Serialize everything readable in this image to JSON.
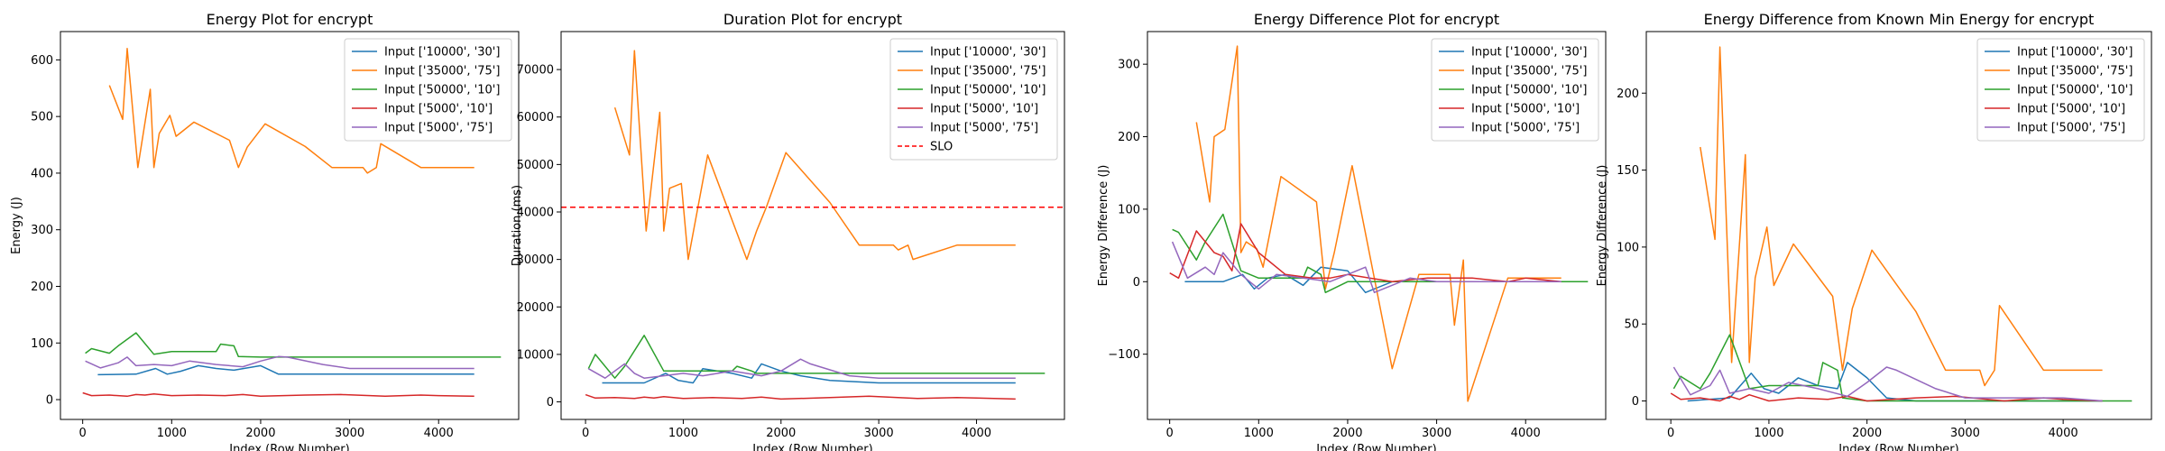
{
  "chart_data": [
    {
      "type": "line",
      "title": "Energy Plot for encrypt",
      "xlabel": "Index (Row Number)",
      "ylabel": "Energy (J)",
      "xlim": [
        -250,
        4900
      ],
      "ylim": [
        -35,
        650
      ],
      "xticks": [
        0,
        1000,
        2000,
        3000,
        4000
      ],
      "yticks": [
        0,
        100,
        200,
        300,
        400,
        500,
        600
      ],
      "legend": "top-right",
      "series": [
        {
          "name": "Input ['10000', '30']",
          "color": "#1f77b4",
          "x": [
            170,
            600,
            820,
            950,
            1100,
            1300,
            1500,
            1700,
            2000,
            2200,
            2500,
            3000,
            3500,
            4000,
            4400
          ],
          "y": [
            44,
            45,
            55,
            45,
            50,
            60,
            55,
            52,
            60,
            45,
            45,
            45,
            45,
            45,
            45
          ]
        },
        {
          "name": "Input ['35000', '75']",
          "color": "#ff7f0e",
          "x": [
            300,
            450,
            500,
            620,
            760,
            800,
            860,
            980,
            1050,
            1250,
            1650,
            1750,
            1850,
            2050,
            2500,
            2800,
            3150,
            3200,
            3300,
            3350,
            3800,
            4400
          ],
          "y": [
            555,
            495,
            620,
            410,
            548,
            410,
            470,
            502,
            465,
            490,
            458,
            410,
            446,
            487,
            447,
            410,
            410,
            400,
            410,
            452,
            410,
            410
          ]
        },
        {
          "name": "Input ['50000', '10']",
          "color": "#2ca02c",
          "x": [
            30,
            100,
            300,
            400,
            600,
            800,
            1000,
            1500,
            1550,
            1700,
            1750,
            2000,
            4700
          ],
          "y": [
            82,
            90,
            82,
            95,
            118,
            80,
            85,
            85,
            98,
            95,
            76,
            75,
            75
          ]
        },
        {
          "name": "Input ['5000', '10']",
          "color": "#d62728",
          "x": [
            0,
            100,
            300,
            500,
            600,
            700,
            800,
            1000,
            1300,
            1600,
            1800,
            2000,
            2500,
            2900,
            3400,
            3800,
            4000,
            4400
          ],
          "y": [
            12,
            7,
            8,
            6,
            9,
            8,
            10,
            7,
            8,
            7,
            9,
            6,
            8,
            9,
            6,
            8,
            7,
            6
          ]
        },
        {
          "name": "Input ['5000', '75']",
          "color": "#9467bd",
          "x": [
            30,
            200,
            400,
            500,
            600,
            800,
            1000,
            1200,
            1500,
            1800,
            2000,
            2200,
            2300,
            2700,
            3000,
            4000,
            4400
          ],
          "y": [
            68,
            56,
            65,
            75,
            60,
            62,
            60,
            68,
            62,
            58,
            68,
            76,
            75,
            62,
            55,
            55,
            55
          ]
        }
      ]
    },
    {
      "type": "line",
      "title": "Duration Plot for encrypt",
      "xlabel": "Index (Row Number)",
      "ylabel": "Duration (ms)",
      "xlim": [
        -250,
        4900
      ],
      "ylim": [
        -3700,
        78000
      ],
      "xticks": [
        0,
        1000,
        2000,
        3000,
        4000
      ],
      "yticks": [
        0,
        10000,
        20000,
        30000,
        40000,
        50000,
        60000,
        70000
      ],
      "legend": "top-right",
      "slo": {
        "name": "SLO",
        "value": 41000,
        "color": "#ff0000"
      },
      "series": [
        {
          "name": "Input ['10000', '30']",
          "color": "#1f77b4",
          "x": [
            170,
            600,
            820,
            950,
            1100,
            1200,
            1500,
            1700,
            1800,
            2000,
            2200,
            2500,
            3000,
            3500,
            4000,
            4400
          ],
          "y": [
            4000,
            4000,
            6000,
            4500,
            4000,
            7000,
            6000,
            5000,
            8000,
            6500,
            5500,
            4500,
            4000,
            4000,
            4000,
            4000
          ]
        },
        {
          "name": "Input ['35000', '75']",
          "color": "#ff7f0e",
          "x": [
            300,
            450,
            500,
            620,
            760,
            800,
            860,
            980,
            1050,
            1250,
            1650,
            1750,
            1850,
            2050,
            2500,
            2800,
            3150,
            3200,
            3300,
            3350,
            3800,
            4400
          ],
          "y": [
            62000,
            52000,
            74000,
            36000,
            61000,
            36000,
            45000,
            46000,
            30000,
            52000,
            30000,
            36000,
            41000,
            52500,
            42000,
            33000,
            33000,
            32000,
            33000,
            30000,
            33000,
            33000
          ]
        },
        {
          "name": "Input ['50000', '10']",
          "color": "#2ca02c",
          "x": [
            30,
            100,
            300,
            400,
            600,
            800,
            1000,
            1500,
            1550,
            1700,
            1750,
            2000,
            4700
          ],
          "y": [
            7000,
            10000,
            5000,
            7500,
            14000,
            6500,
            6500,
            6500,
            7500,
            6500,
            6000,
            6000,
            6000
          ]
        },
        {
          "name": "Input ['5000', '10']",
          "color": "#d62728",
          "x": [
            0,
            100,
            300,
            500,
            600,
            700,
            800,
            1000,
            1300,
            1600,
            1800,
            2000,
            2500,
            2900,
            3400,
            3800,
            4000,
            4400
          ],
          "y": [
            1500,
            800,
            900,
            700,
            1000,
            800,
            1100,
            700,
            900,
            700,
            1000,
            600,
            900,
            1200,
            700,
            900,
            800,
            600
          ]
        },
        {
          "name": "Input ['5000', '75']",
          "color": "#9467bd",
          "x": [
            30,
            200,
            400,
            500,
            600,
            800,
            1000,
            1200,
            1500,
            1800,
            2000,
            2200,
            2300,
            2700,
            3000,
            4000,
            4400
          ],
          "y": [
            7000,
            5000,
            8000,
            6000,
            5000,
            5500,
            6000,
            5500,
            6500,
            5500,
            6500,
            9000,
            8000,
            5500,
            5000,
            5000,
            5000
          ]
        }
      ]
    },
    {
      "type": "line",
      "title": "Energy Difference Plot for encrypt",
      "xlabel": "Index (Row Number)",
      "ylabel": "Energy Difference (J)",
      "xlim": [
        -250,
        4900
      ],
      "ylim": [
        -190,
        345
      ],
      "xticks": [
        0,
        1000,
        2000,
        3000,
        4000
      ],
      "yticks": [
        -100,
        0,
        100,
        200,
        300
      ],
      "legend": "top-right",
      "series": [
        {
          "name": "Input ['10000', '30']",
          "color": "#1f77b4",
          "x": [
            170,
            600,
            820,
            950,
            1100,
            1300,
            1500,
            1700,
            2000,
            2200,
            2500,
            3000,
            3500,
            4000,
            4400
          ],
          "y": [
            0,
            0,
            10,
            -10,
            5,
            10,
            -5,
            20,
            15,
            -15,
            0,
            0,
            0,
            0,
            0
          ]
        },
        {
          "name": "Input ['35000', '75']",
          "color": "#ff7f0e",
          "x": [
            300,
            450,
            500,
            620,
            760,
            800,
            860,
            980,
            1050,
            1250,
            1650,
            1750,
            1850,
            2050,
            2500,
            2800,
            3150,
            3200,
            3300,
            3350,
            3800,
            4400
          ],
          "y": [
            220,
            110,
            200,
            210,
            325,
            40,
            55,
            45,
            20,
            145,
            110,
            -10,
            40,
            160,
            -120,
            10,
            10,
            -60,
            30,
            -165,
            5,
            5
          ]
        },
        {
          "name": "Input ['50000', '10']",
          "color": "#2ca02c",
          "x": [
            30,
            100,
            300,
            400,
            600,
            800,
            1000,
            1500,
            1550,
            1700,
            1750,
            2000,
            4700
          ],
          "y": [
            72,
            68,
            30,
            55,
            93,
            15,
            5,
            5,
            20,
            10,
            -15,
            0,
            0
          ]
        },
        {
          "name": "Input ['5000', '10']",
          "color": "#d62728",
          "x": [
            0,
            100,
            300,
            500,
            600,
            700,
            800,
            1000,
            1300,
            1600,
            1800,
            2000,
            2500,
            2900,
            3400,
            3800,
            4000,
            4400
          ],
          "y": [
            12,
            5,
            70,
            40,
            35,
            15,
            80,
            40,
            10,
            5,
            5,
            10,
            0,
            5,
            5,
            0,
            5,
            0
          ]
        },
        {
          "name": "Input ['5000', '75']",
          "color": "#9467bd",
          "x": [
            30,
            200,
            400,
            500,
            600,
            800,
            1000,
            1200,
            1500,
            1800,
            2000,
            2200,
            2300,
            2700,
            3000,
            4000,
            4400
          ],
          "y": [
            55,
            5,
            20,
            10,
            40,
            10,
            -10,
            10,
            5,
            0,
            10,
            20,
            -15,
            5,
            0,
            0,
            0
          ]
        }
      ]
    },
    {
      "type": "line",
      "title": "Energy Difference from Known Min Energy for encrypt",
      "xlabel": "Index (Row Number)",
      "ylabel": "Energy Difference (J)",
      "xlim": [
        -250,
        4900
      ],
      "ylim": [
        -12,
        240
      ],
      "xticks": [
        0,
        1000,
        2000,
        3000,
        4000
      ],
      "yticks": [
        0,
        50,
        100,
        150,
        200
      ],
      "legend": "top-right",
      "series": [
        {
          "name": "Input ['10000', '30']",
          "color": "#1f77b4",
          "x": [
            170,
            600,
            820,
            950,
            1100,
            1300,
            1500,
            1700,
            1800,
            2000,
            2200,
            2500,
            3000,
            3500,
            4000,
            4400
          ],
          "y": [
            0,
            2,
            18,
            8,
            5,
            15,
            10,
            8,
            25,
            15,
            2,
            0,
            0,
            0,
            0,
            0
          ]
        },
        {
          "name": "Input ['35000', '75']",
          "color": "#ff7f0e",
          "x": [
            300,
            450,
            500,
            620,
            760,
            800,
            860,
            980,
            1050,
            1250,
            1650,
            1750,
            1850,
            2050,
            2500,
            2800,
            3150,
            3200,
            3300,
            3350,
            3800,
            4400
          ],
          "y": [
            165,
            105,
            230,
            25,
            160,
            25,
            80,
            113,
            75,
            102,
            68,
            20,
            60,
            98,
            58,
            20,
            20,
            10,
            20,
            62,
            20,
            20
          ]
        },
        {
          "name": "Input ['50000', '10']",
          "color": "#2ca02c",
          "x": [
            30,
            100,
            300,
            400,
            600,
            800,
            1000,
            1500,
            1550,
            1700,
            1750,
            2000,
            4700
          ],
          "y": [
            8,
            16,
            8,
            18,
            43,
            8,
            10,
            10,
            25,
            20,
            2,
            0,
            0
          ]
        },
        {
          "name": "Input ['5000', '10']",
          "color": "#d62728",
          "x": [
            0,
            100,
            300,
            500,
            600,
            700,
            800,
            1000,
            1300,
            1600,
            1800,
            2000,
            2500,
            2900,
            3400,
            3800,
            4000,
            4400
          ],
          "y": [
            5,
            1,
            2,
            0,
            3,
            1,
            4,
            0,
            2,
            1,
            3,
            0,
            2,
            3,
            0,
            2,
            1,
            0
          ]
        },
        {
          "name": "Input ['5000', '75']",
          "color": "#9467bd",
          "x": [
            30,
            200,
            400,
            500,
            600,
            800,
            1000,
            1200,
            1500,
            1800,
            2000,
            2200,
            2300,
            2700,
            3000,
            4000,
            4400
          ],
          "y": [
            22,
            4,
            10,
            20,
            5,
            8,
            5,
            12,
            8,
            3,
            12,
            22,
            20,
            8,
            2,
            2,
            0
          ]
        }
      ]
    }
  ]
}
